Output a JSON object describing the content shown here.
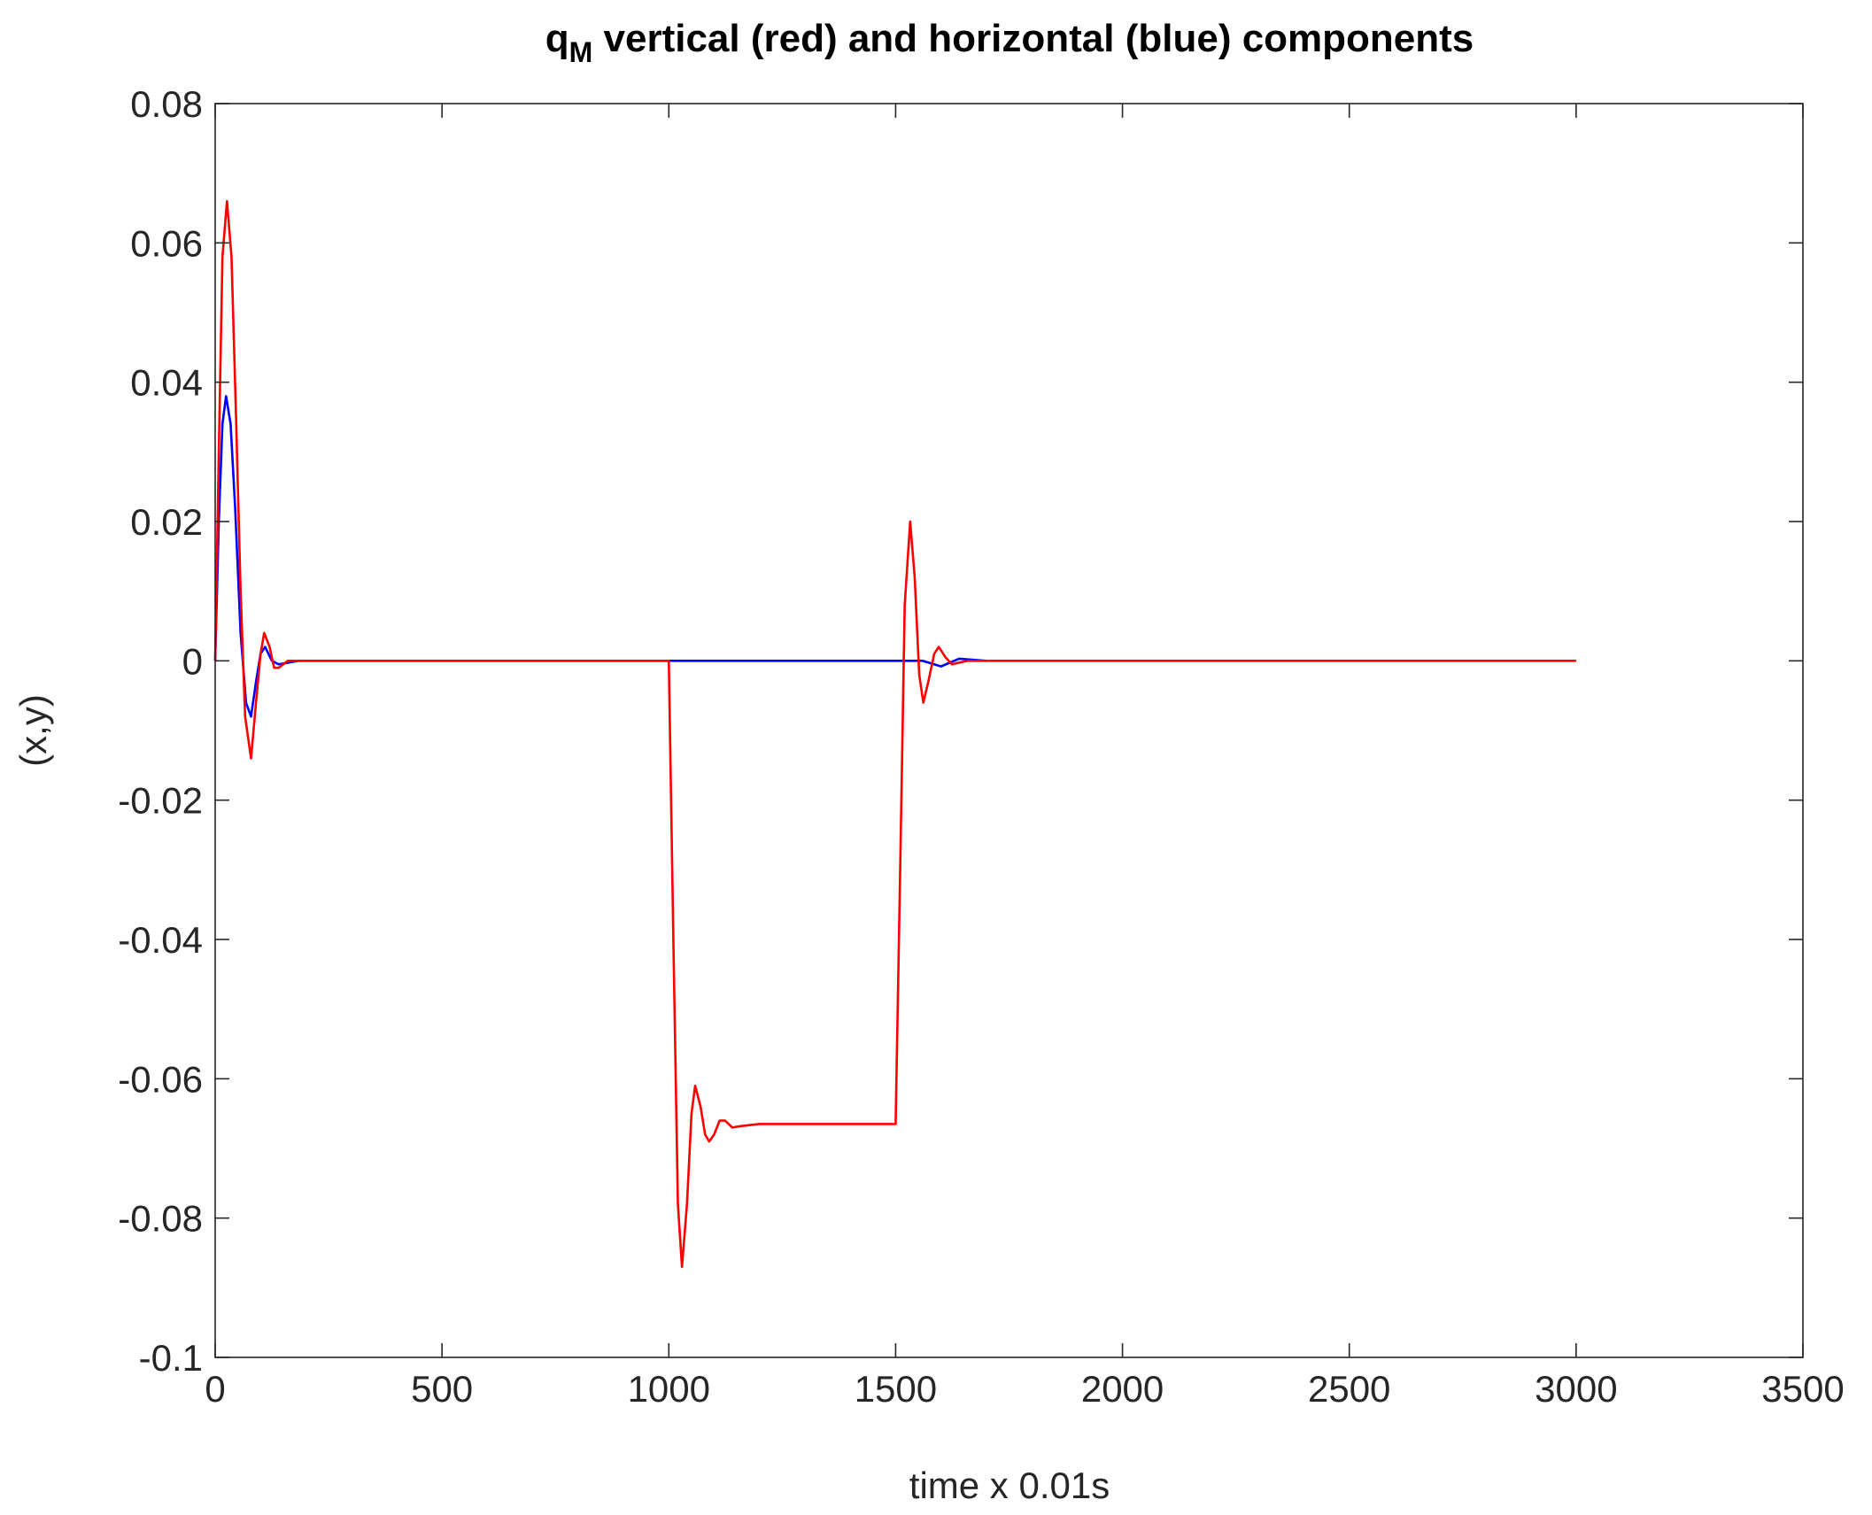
{
  "chart_data": {
    "type": "line",
    "title": {
      "base": "q",
      "subscript": "M",
      "text": " vertical (red) and horizontal (blue) components"
    },
    "xlabel": "time x 0.01s",
    "ylabel": "(x,y)",
    "xlim": [
      0,
      3500
    ],
    "xticks": [
      0,
      500,
      1000,
      1500,
      2000,
      2500,
      3000,
      3500
    ],
    "ylim": [
      -0.1,
      0.08
    ],
    "yticks": [
      -0.1,
      -0.08,
      -0.06,
      -0.04,
      -0.02,
      0,
      0.02,
      0.04,
      0.06,
      0.08
    ],
    "series": [
      {
        "color": "#0000ff",
        "x": [
          0,
          8,
          16,
          24,
          34,
          44,
          56,
          68,
          79,
          90,
          100,
          110,
          125,
          140,
          184,
          1500,
          1560,
          1600,
          1640,
          1700
        ],
        "values": [
          0,
          0.02,
          0.034,
          0.038,
          0.034,
          0.022,
          0.004,
          -0.006,
          -0.008,
          -0.003,
          0.001,
          0.002,
          0,
          -0.0005,
          0,
          0,
          0,
          -0.0008,
          0.0003,
          0
        ]
      },
      {
        "color": "#ff0000",
        "x": [
          0,
          8,
          16,
          26,
          36,
          46,
          56,
          66,
          79,
          90,
          100,
          108,
          120,
          130,
          140,
          160,
          184,
          1000,
          1010,
          1020,
          1029,
          1040,
          1050,
          1058,
          1070,
          1080,
          1089,
          1100,
          1112,
          1124,
          1140,
          1158,
          1200,
          1500,
          1510,
          1520,
          1532,
          1542,
          1552,
          1561,
          1572,
          1585,
          1595,
          1610,
          1624,
          1658,
          3000
        ],
        "values": [
          0,
          0.03,
          0.058,
          0.066,
          0.058,
          0.035,
          0.01,
          -0.008,
          -0.014,
          -0.006,
          0.001,
          0.004,
          0.002,
          -0.001,
          -0.001,
          0,
          0,
          0,
          -0.04,
          -0.078,
          -0.087,
          -0.078,
          -0.065,
          -0.061,
          -0.064,
          -0.068,
          -0.069,
          -0.068,
          -0.066,
          -0.066,
          -0.067,
          -0.0668,
          -0.0665,
          -0.0665,
          -0.03,
          0.008,
          0.02,
          0.012,
          -0.002,
          -0.006,
          -0.003,
          0.001,
          0.002,
          0.0005,
          -0.0005,
          0,
          0
        ]
      }
    ]
  }
}
